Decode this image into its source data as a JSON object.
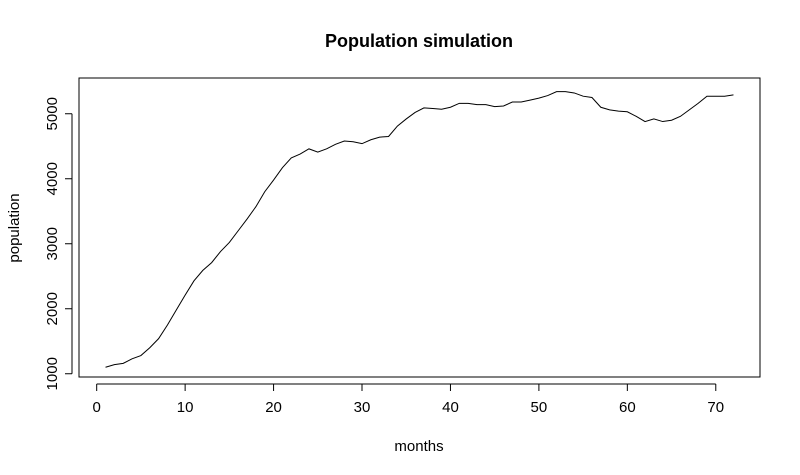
{
  "chart_data": {
    "type": "line",
    "title": "Population simulation",
    "xlabel": "months",
    "ylabel": "population",
    "xlim": [
      -2.0,
      75.0
    ],
    "ylim": [
      950,
      5550
    ],
    "x_ticks": [
      0,
      10,
      20,
      30,
      40,
      50,
      60,
      70
    ],
    "y_ticks": [
      1000,
      2000,
      3000,
      4000,
      5000
    ],
    "x_tick_labels": [
      "0",
      "10",
      "20",
      "30",
      "40",
      "50",
      "60",
      "70"
    ],
    "y_tick_labels": [
      "1000",
      "2000",
      "3000",
      "4000",
      "5000"
    ],
    "grid": false,
    "legend": "none",
    "series": [
      {
        "x": [
          1,
          2,
          3,
          4,
          5,
          6,
          7,
          8,
          9,
          10,
          11,
          12,
          13,
          14,
          15,
          16,
          17,
          18,
          19,
          20,
          21,
          22,
          23,
          24,
          25,
          26,
          27,
          28,
          29,
          30,
          31,
          32,
          33,
          34,
          35,
          36,
          37,
          38,
          39,
          40,
          41,
          42,
          43,
          44,
          45,
          46,
          47,
          48,
          49,
          50,
          51,
          52,
          53,
          54,
          55,
          56,
          57,
          58,
          59,
          60,
          61,
          62,
          63,
          64,
          65,
          66,
          67,
          68,
          69,
          70,
          71,
          72
        ],
        "values": [
          1100,
          1140,
          1160,
          1230,
          1280,
          1400,
          1540,
          1750,
          1980,
          2210,
          2430,
          2590,
          2710,
          2880,
          3020,
          3200,
          3380,
          3570,
          3800,
          3980,
          4170,
          4320,
          4380,
          4460,
          4410,
          4460,
          4530,
          4580,
          4570,
          4540,
          4600,
          4640,
          4650,
          4810,
          4920,
          5020,
          5090,
          5080,
          5070,
          5100,
          5160,
          5160,
          5140,
          5140,
          5110,
          5120,
          5180,
          5180,
          5210,
          5240,
          5280,
          5340,
          5340,
          5320,
          5270,
          5250,
          5100,
          5060,
          5040,
          5030,
          4960,
          4880,
          4920,
          4880,
          4900,
          4960,
          5060,
          5160,
          5270,
          5270,
          5270,
          5290
        ]
      }
    ]
  }
}
